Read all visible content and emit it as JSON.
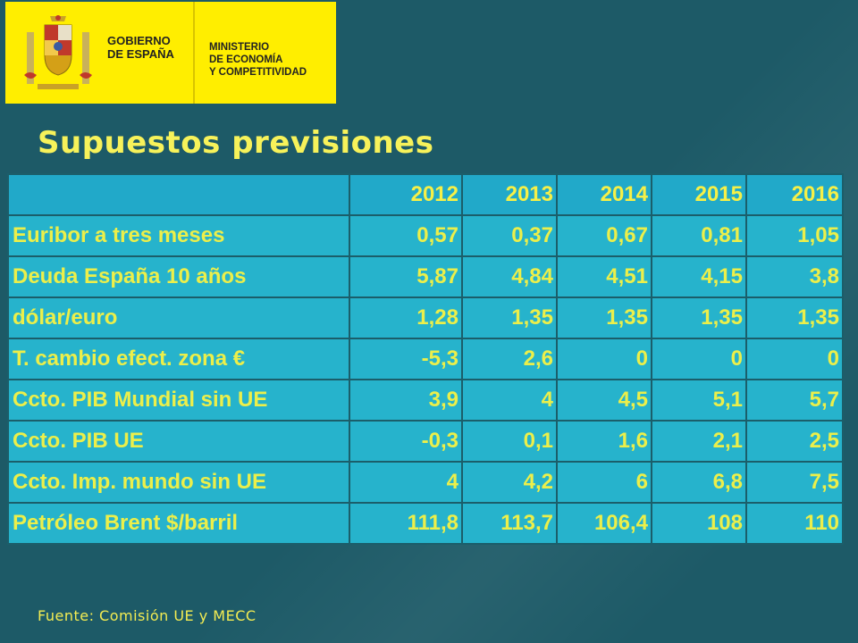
{
  "header": {
    "gobierno_line1": "GOBIERNO",
    "gobierno_line2": "DE ESPAÑA",
    "ministerio_line1": "MINISTERIO",
    "ministerio_line2": "DE ECONOMÍA",
    "ministerio_line3": "Y COMPETITIVIDAD"
  },
  "title": "Supuestos previsiones",
  "table": {
    "columns": [
      "",
      "2012",
      "2013",
      "2014",
      "2015",
      "2016"
    ],
    "rows": [
      {
        "label": "Euribor a tres meses",
        "values": [
          "0,57",
          "0,37",
          "0,67",
          "0,81",
          "1,05"
        ]
      },
      {
        "label": "Deuda España 10 años",
        "values": [
          "5,87",
          "4,84",
          "4,51",
          "4,15",
          "3,8"
        ]
      },
      {
        "label": "dólar/euro",
        "values": [
          "1,28",
          "1,35",
          "1,35",
          "1,35",
          "1,35"
        ]
      },
      {
        "label": "T. cambio efect.  zona €",
        "values": [
          "-5,3",
          "2,6",
          "0",
          "0",
          "0"
        ]
      },
      {
        "label": "Ccto. PIB Mundial sin UE",
        "values": [
          "3,9",
          "4",
          "4,5",
          "5,1",
          "5,7"
        ]
      },
      {
        "label": "Ccto. PIB UE",
        "values": [
          "-0,3",
          "0,1",
          "1,6",
          "2,1",
          "2,5"
        ]
      },
      {
        "label": "Ccto. Imp. mundo sin UE",
        "values": [
          "4",
          "4,2",
          "6",
          "6,8",
          "7,5"
        ]
      },
      {
        "label": "Petróleo Brent $/barril",
        "values": [
          "111,8",
          "113,7",
          "106,4",
          "108",
          "110"
        ]
      }
    ]
  },
  "source": "Fuente: Comisión UE y MECC",
  "colors": {
    "background": "#1d5a67",
    "banner": "#ffee00",
    "table_cell": "#26b3cc",
    "text_yellow": "#f6f047"
  }
}
